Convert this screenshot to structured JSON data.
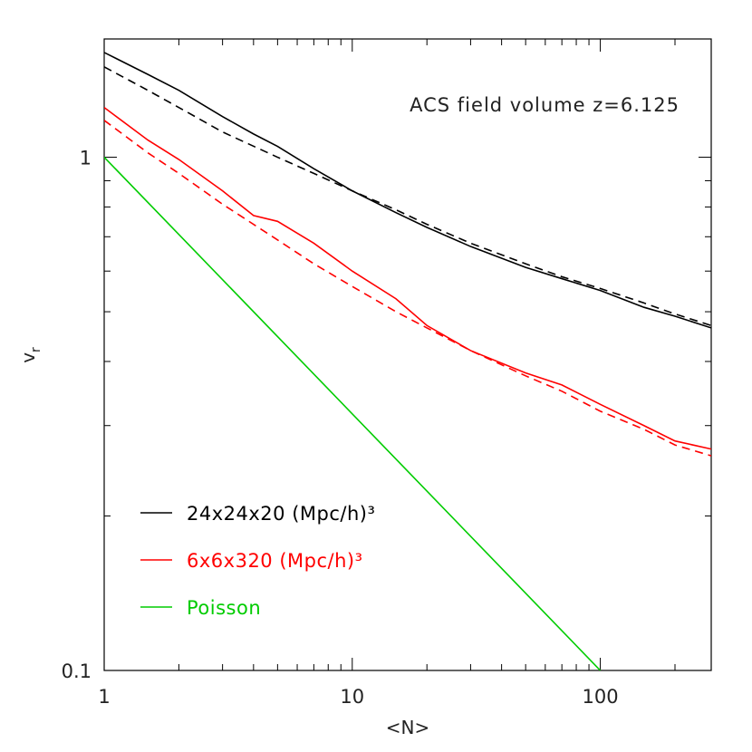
{
  "chart_data": {
    "type": "line",
    "title": "",
    "annotation": "ACS field volume z=6.125",
    "xlabel": "<N>",
    "ylabel": "v",
    "ylabel_subscript": "r",
    "xscale": "log",
    "yscale": "log",
    "xlim": [
      1,
      280
    ],
    "ylim": [
      0.1,
      1.7
    ],
    "x_ticks": [
      {
        "value": 1,
        "label": "1"
      },
      {
        "value": 10,
        "label": "10"
      },
      {
        "value": 100,
        "label": "100"
      }
    ],
    "y_ticks": [
      {
        "value": 0.1,
        "label": "0.1"
      },
      {
        "value": 1,
        "label": "1"
      }
    ],
    "legend_position": "bottom-left",
    "series": [
      {
        "name": "24x24x20 (Mpc/h)³",
        "color": "#000000",
        "style": "solid",
        "points": [
          [
            1,
            1.6
          ],
          [
            1.5,
            1.45
          ],
          [
            2,
            1.35
          ],
          [
            3,
            1.2
          ],
          [
            4,
            1.11
          ],
          [
            5,
            1.05
          ],
          [
            7,
            0.95
          ],
          [
            10,
            0.86
          ],
          [
            15,
            0.78
          ],
          [
            20,
            0.73
          ],
          [
            30,
            0.67
          ],
          [
            50,
            0.61
          ],
          [
            70,
            0.58
          ],
          [
            100,
            0.55
          ],
          [
            150,
            0.51
          ],
          [
            200,
            0.49
          ],
          [
            280,
            0.465
          ]
        ]
      },
      {
        "name": "",
        "color": "#000000",
        "style": "dashed",
        "points": [
          [
            1,
            1.5
          ],
          [
            1.5,
            1.35
          ],
          [
            2,
            1.25
          ],
          [
            3,
            1.12
          ],
          [
            5,
            1.0
          ],
          [
            7,
            0.93
          ],
          [
            10,
            0.86
          ],
          [
            15,
            0.79
          ],
          [
            20,
            0.74
          ],
          [
            30,
            0.68
          ],
          [
            50,
            0.62
          ],
          [
            70,
            0.585
          ],
          [
            100,
            0.555
          ],
          [
            150,
            0.52
          ],
          [
            200,
            0.495
          ],
          [
            280,
            0.47
          ]
        ]
      },
      {
        "name": "6x6x320 (Mpc/h)³",
        "color": "#ff0000",
        "style": "solid",
        "points": [
          [
            1,
            1.25
          ],
          [
            1.5,
            1.08
          ],
          [
            2,
            0.99
          ],
          [
            3,
            0.86
          ],
          [
            4,
            0.77
          ],
          [
            5,
            0.75
          ],
          [
            7,
            0.68
          ],
          [
            10,
            0.6
          ],
          [
            15,
            0.53
          ],
          [
            20,
            0.47
          ],
          [
            30,
            0.42
          ],
          [
            50,
            0.38
          ],
          [
            70,
            0.36
          ],
          [
            100,
            0.33
          ],
          [
            150,
            0.3
          ],
          [
            200,
            0.28
          ],
          [
            280,
            0.27
          ]
        ]
      },
      {
        "name": "",
        "color": "#ff0000",
        "style": "dashed",
        "points": [
          [
            1,
            1.18
          ],
          [
            1.5,
            1.02
          ],
          [
            2,
            0.93
          ],
          [
            3,
            0.81
          ],
          [
            5,
            0.69
          ],
          [
            7,
            0.62
          ],
          [
            10,
            0.56
          ],
          [
            15,
            0.5
          ],
          [
            20,
            0.465
          ],
          [
            30,
            0.42
          ],
          [
            50,
            0.375
          ],
          [
            70,
            0.35
          ],
          [
            100,
            0.32
          ],
          [
            150,
            0.295
          ],
          [
            200,
            0.275
          ],
          [
            280,
            0.262
          ]
        ]
      },
      {
        "name": "Poisson",
        "color": "#00cc00",
        "style": "solid",
        "points": [
          [
            1,
            1.0
          ],
          [
            100,
            0.1
          ]
        ]
      }
    ]
  }
}
